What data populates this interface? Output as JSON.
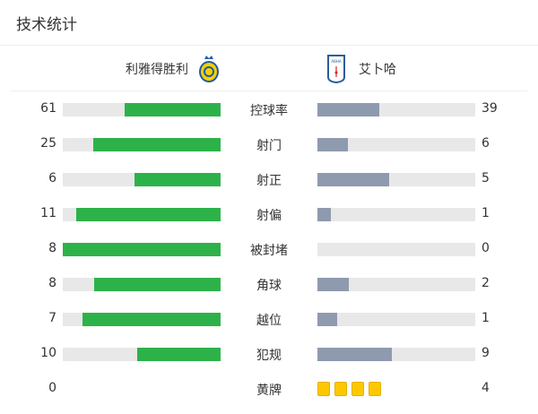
{
  "title": "技术统计",
  "home": {
    "name": "利雅得胜利",
    "logo": "al-nassr-crest"
  },
  "away": {
    "name": "艾卜哈",
    "logo": "abha-crest"
  },
  "colors": {
    "home": "#2db24a",
    "away": "#8e9aae",
    "track": "#e8e8e8",
    "yellow_card": "#fdc800"
  },
  "stats": [
    {
      "label": "控球率",
      "home": "61",
      "away": "39"
    },
    {
      "label": "射门",
      "home": "25",
      "away": "6"
    },
    {
      "label": "射正",
      "home": "6",
      "away": "5"
    },
    {
      "label": "射偏",
      "home": "11",
      "away": "1"
    },
    {
      "label": "被封堵",
      "home": "8",
      "away": "0"
    },
    {
      "label": "角球",
      "home": "8",
      "away": "2"
    },
    {
      "label": "越位",
      "home": "7",
      "away": "1"
    },
    {
      "label": "犯规",
      "home": "10",
      "away": "9"
    },
    {
      "label": "黄牌",
      "home": "0",
      "away": "4",
      "cards": true
    }
  ]
}
